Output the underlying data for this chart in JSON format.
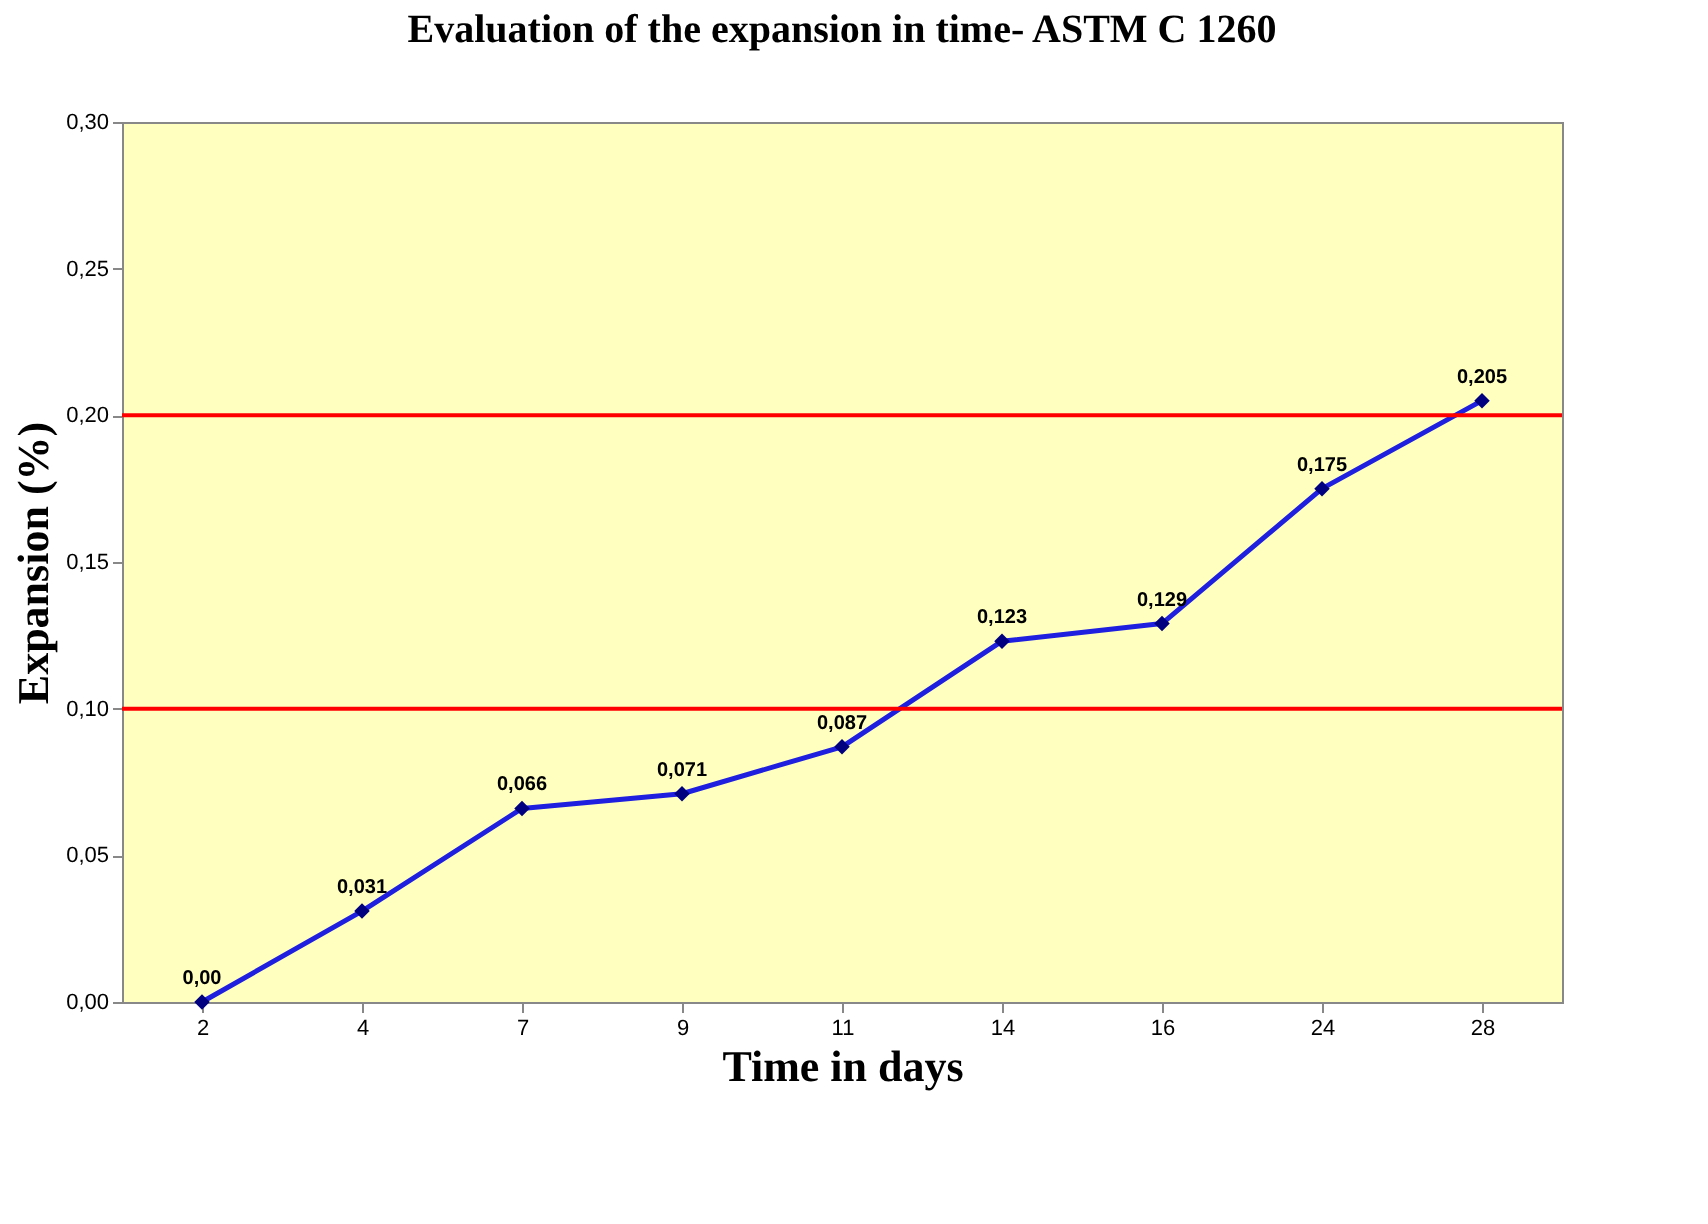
{
  "chart_data": {
    "type": "line",
    "title": "Evaluation of the expansion in time- ASTM C 1260",
    "xlabel": "Time in days",
    "ylabel": "Expansion (%)",
    "categories": [
      "2",
      "4",
      "7",
      "9",
      "11",
      "14",
      "16",
      "24",
      "28"
    ],
    "series": [
      {
        "color": "#1f1fe0",
        "values": [
          0.0,
          0.031,
          0.066,
          0.071,
          0.087,
          0.123,
          0.129,
          0.175,
          0.205
        ],
        "value_labels": [
          "0,00",
          "0,031",
          "0,066",
          "0,071",
          "0,087",
          "0,123",
          "0,129",
          "0,175",
          "0,205"
        ]
      }
    ],
    "ylim": [
      0,
      0.3
    ],
    "yticks": [
      {
        "value": 0,
        "label": "0,00"
      },
      {
        "value": 0.05,
        "label": "0,05"
      },
      {
        "value": 0.1,
        "label": "0,10"
      },
      {
        "value": 0.15,
        "label": "0,15"
      },
      {
        "value": 0.2,
        "label": "0,20"
      },
      {
        "value": 0.25,
        "label": "0,25"
      },
      {
        "value": 0.3,
        "label": "0,30"
      }
    ],
    "ref_lines": [
      {
        "axis": "y",
        "value": 0.1,
        "color": "#ff0000"
      },
      {
        "axis": "y",
        "value": 0.2,
        "color": "#ff0000"
      }
    ],
    "marker": "diamond",
    "line_style": "solid",
    "grid": false
  }
}
